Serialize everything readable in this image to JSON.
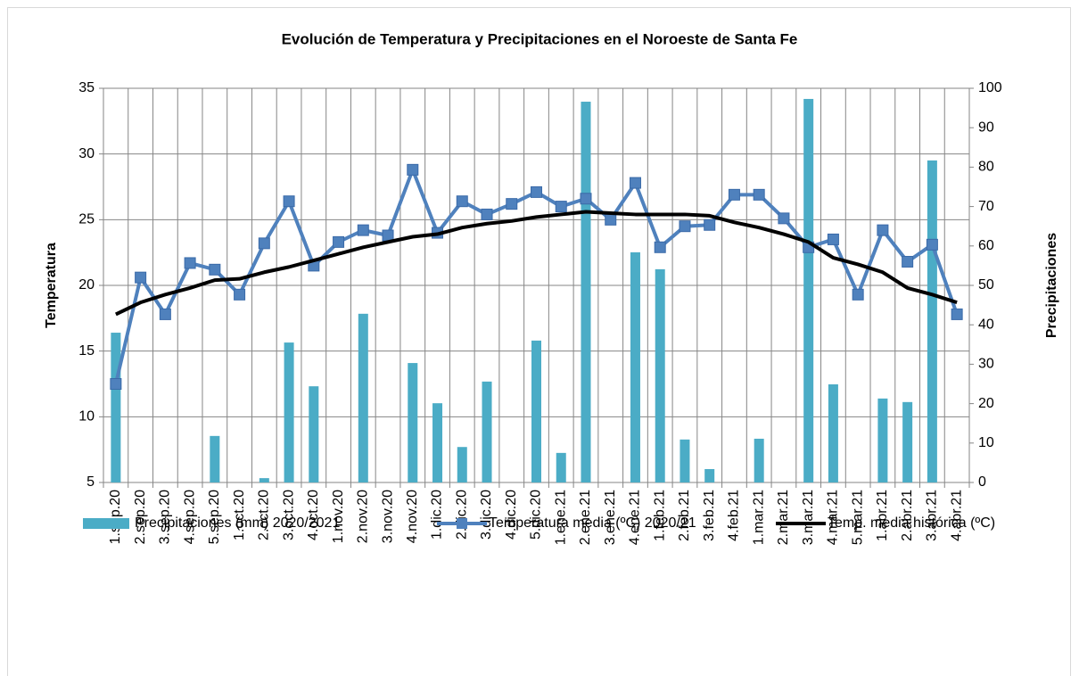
{
  "chart_data": {
    "type": "combo",
    "title": "Evolución de Temperatura y Precipitaciones en el Noroeste de Santa Fe",
    "y_label": "Temperatura",
    "y2_label": "Precipitaciones",
    "categories": [
      "1.sep.20",
      "2.sep.20",
      "3.sep.20",
      "4.sep.20",
      "5.sep.20",
      "1.oct.20",
      "2.oct.20",
      "3.oct.20",
      "4.oct.20",
      "1.nov.20",
      "2.nov.20",
      "3.nov.20",
      "4.nov.20",
      "1.dic.20",
      "2.dic.20",
      "3.dic.20",
      "4.dic.20",
      "5.dic.20",
      "1.ene.21",
      "2.ene.21",
      "3.ene.21",
      "4.ene.21",
      "1.feb.21",
      "2.feb.21",
      "3.feb.21",
      "4.feb.21",
      "1.mar.21",
      "2.mar.21",
      "3.mar.21",
      "4.mar.21",
      "5.mar.21",
      "1.abr.21",
      "2.abr.21",
      "3.abr.21",
      "4.abr.21"
    ],
    "series": [
      {
        "name": "Precipitaciones (mm) 2020/2021",
        "type": "bar",
        "axis": "y2",
        "color": "#4bacc6",
        "values": [
          38.0,
          0,
          0,
          0,
          11.8,
          0,
          1.1,
          35.5,
          24.4,
          0,
          42.8,
          0,
          30.3,
          20.1,
          9.0,
          25.6,
          0,
          36.0,
          7.5,
          96.6,
          0,
          58.4,
          54.1,
          10.9,
          3.4,
          0,
          11.1,
          0,
          97.3,
          24.9,
          0,
          21.3,
          20.4,
          81.7,
          0
        ]
      },
      {
        "name": "Temperatura media (ºC) 2020/21",
        "type": "line",
        "marker": "square",
        "color": "#4f81bd",
        "values": [
          12.5,
          20.6,
          17.8,
          21.7,
          21.2,
          19.3,
          23.2,
          26.4,
          21.5,
          23.3,
          24.2,
          23.8,
          28.8,
          24.0,
          26.4,
          25.4,
          26.2,
          27.1,
          26.0,
          26.6,
          25.0,
          27.8,
          22.9,
          24.5,
          24.6,
          26.9,
          26.9,
          25.1,
          22.9,
          23.5,
          19.3,
          24.2,
          21.8,
          23.1,
          17.8
        ]
      },
      {
        "name": "Temp. media histórica (ºC)",
        "type": "line",
        "color": "#000000",
        "values": [
          17.8,
          18.7,
          19.3,
          19.8,
          20.4,
          20.5,
          21.0,
          21.4,
          21.9,
          22.4,
          22.9,
          23.3,
          23.7,
          23.9,
          24.4,
          24.7,
          24.9,
          25.2,
          25.4,
          25.6,
          25.5,
          25.4,
          25.4,
          25.4,
          25.3,
          24.8,
          24.4,
          23.9,
          23.3,
          22.1,
          21.6,
          21.0,
          19.8,
          19.3,
          18.7
        ]
      }
    ],
    "ylim": [
      5,
      35
    ],
    "yticks": [
      5,
      10,
      15,
      20,
      25,
      30,
      35
    ],
    "y2lim": [
      0,
      100
    ],
    "y2ticks": [
      0,
      10,
      20,
      30,
      40,
      50,
      60,
      70,
      80,
      90,
      100
    ],
    "grid": true,
    "legend": "bottom"
  }
}
